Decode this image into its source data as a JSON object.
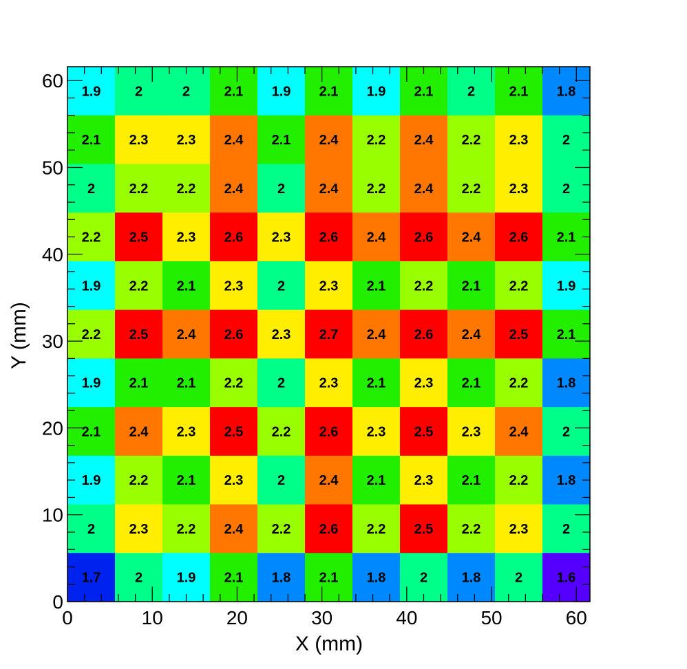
{
  "chart_data": {
    "type": "heatmap",
    "title": "",
    "xlabel": "X (mm)",
    "ylabel": "Y (mm)",
    "xlim": [
      0,
      61.6
    ],
    "ylim": [
      0,
      61.6
    ],
    "x_ticks": [
      "0",
      "10",
      "20",
      "30",
      "40",
      "50",
      "60"
    ],
    "y_ticks": [
      "0",
      "10",
      "20",
      "30",
      "40",
      "50",
      "60"
    ],
    "grid": false,
    "legend": "none",
    "bins_x": 11,
    "bins_y": 11,
    "bin_width_mm": 5.6,
    "rows_top_to_bottom": [
      [
        1.9,
        2,
        2,
        2.1,
        1.9,
        2.1,
        1.9,
        2.1,
        2,
        2.1,
        1.8
      ],
      [
        2.1,
        2.3,
        2.3,
        2.4,
        2.1,
        2.4,
        2.2,
        2.4,
        2.2,
        2.3,
        2
      ],
      [
        2,
        2.2,
        2.2,
        2.4,
        2,
        2.4,
        2.2,
        2.4,
        2.2,
        2.3,
        2
      ],
      [
        2.2,
        2.5,
        2.3,
        2.6,
        2.3,
        2.6,
        2.4,
        2.6,
        2.4,
        2.6,
        2.1
      ],
      [
        1.9,
        2.2,
        2.1,
        2.3,
        2,
        2.3,
        2.1,
        2.2,
        2.1,
        2.2,
        1.9
      ],
      [
        2.2,
        2.5,
        2.4,
        2.6,
        2.3,
        2.7,
        2.4,
        2.6,
        2.4,
        2.5,
        2.1
      ],
      [
        1.9,
        2.1,
        2.1,
        2.2,
        2,
        2.3,
        2.1,
        2.3,
        2.1,
        2.2,
        1.8
      ],
      [
        2.1,
        2.4,
        2.3,
        2.5,
        2.2,
        2.6,
        2.3,
        2.5,
        2.3,
        2.4,
        2
      ],
      [
        1.9,
        2.2,
        2.1,
        2.3,
        2,
        2.4,
        2.1,
        2.3,
        2.1,
        2.2,
        1.8
      ],
      [
        2,
        2.3,
        2.2,
        2.4,
        2.2,
        2.6,
        2.2,
        2.5,
        2.2,
        2.3,
        2
      ],
      [
        1.7,
        2,
        1.9,
        2.1,
        1.8,
        2.1,
        1.8,
        2,
        1.8,
        2,
        1.6
      ]
    ],
    "colors": {
      "1.6": "#5500ff",
      "1.7": "#0022ee",
      "1.8": "#0088ff",
      "1.9": "#00ffff",
      "2": "#00ff88",
      "2.1": "#22ee00",
      "2.2": "#99ff00",
      "2.3": "#ffee00",
      "2.4": "#ff7700",
      "2.5": "#ff0000",
      "2.6": "#ff0000",
      "2.7": "#ff0000"
    }
  }
}
